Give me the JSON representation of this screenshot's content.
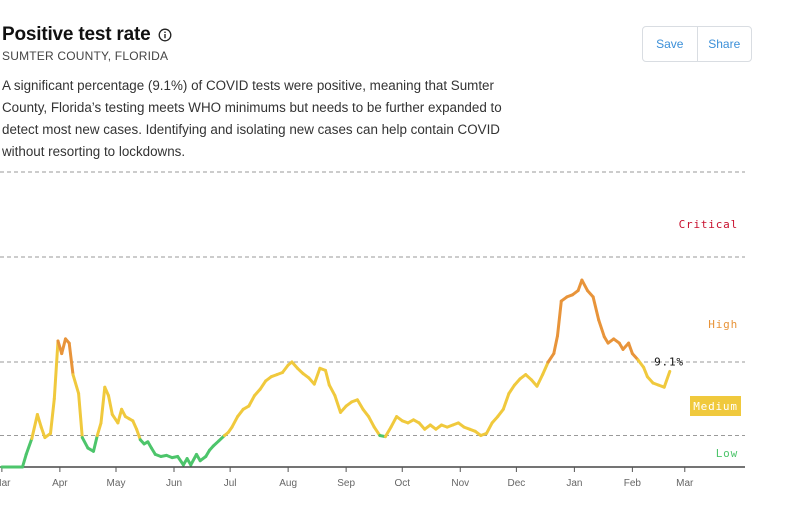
{
  "header": {
    "title": "Positive test rate",
    "subtitle": "SUMTER COUNTY, FLORIDA",
    "description": "A significant percentage (9.1%) of COVID tests were positive, meaning that Sumter County, Florida’s testing meets WHO minimums but needs to be further expanded to detect most new cases. Identifying and isolating new cases can help contain COVID without resorting to lockdowns.",
    "info_icon": "info-icon"
  },
  "actions": {
    "save_label": "Save",
    "share_label": "Share"
  },
  "chart_data": {
    "type": "line",
    "title": "",
    "xlabel": "",
    "ylabel": "",
    "x_start": "2020-03-01",
    "x_end": "2021-03-31",
    "ylim": [
      0,
      0.2
    ],
    "x_ticks": [
      {
        "date": "2020-03-01",
        "label": "Mar"
      },
      {
        "date": "2020-04-01",
        "label": "Apr"
      },
      {
        "date": "2020-05-01",
        "label": "May"
      },
      {
        "date": "2020-06-01",
        "label": "Jun"
      },
      {
        "date": "2020-07-01",
        "label": "Jul"
      },
      {
        "date": "2020-08-01",
        "label": "Aug"
      },
      {
        "date": "2020-09-01",
        "label": "Sep"
      },
      {
        "date": "2020-10-01",
        "label": "Oct"
      },
      {
        "date": "2020-11-01",
        "label": "Nov"
      },
      {
        "date": "2020-12-01",
        "label": "Dec"
      },
      {
        "date": "2021-01-01",
        "label": "Jan"
      },
      {
        "date": "2021-02-01",
        "label": "Feb"
      },
      {
        "date": "2021-03-01",
        "label": "Mar"
      }
    ],
    "thresholds": [
      0.03,
      0.1,
      0.2
    ],
    "zones": [
      {
        "name": "Low",
        "label": "Low",
        "min": 0,
        "max": 0.03,
        "color": "#4dc56b"
      },
      {
        "name": "Medium",
        "label": "Medium",
        "min": 0.03,
        "max": 0.1,
        "color": "#f0c93d"
      },
      {
        "name": "High",
        "label": "High",
        "min": 0.1,
        "max": 0.2,
        "color": "#e8943a"
      },
      {
        "name": "Critical",
        "label": "Critical",
        "min": 0.2,
        "max": 0.3,
        "color": "#c8102e"
      }
    ],
    "latest_label": "9.1%",
    "latest_value": 0.091,
    "series": [
      {
        "points": [
          [
            "2020-03-01",
            0.0
          ],
          [
            "2020-03-12",
            0.0
          ],
          [
            "2020-03-14",
            0.012
          ],
          [
            "2020-03-17",
            0.027
          ],
          [
            "2020-03-20",
            0.05
          ],
          [
            "2020-03-22",
            0.038
          ],
          [
            "2020-03-24",
            0.028
          ],
          [
            "2020-03-27",
            0.032
          ],
          [
            "2020-03-29",
            0.065
          ],
          [
            "2020-03-31",
            0.12
          ],
          [
            "2020-04-02",
            0.108
          ],
          [
            "2020-04-04",
            0.122
          ],
          [
            "2020-04-06",
            0.118
          ],
          [
            "2020-04-08",
            0.088
          ],
          [
            "2020-04-11",
            0.07
          ],
          [
            "2020-04-13",
            0.028
          ],
          [
            "2020-04-16",
            0.018
          ],
          [
            "2020-04-19",
            0.015
          ],
          [
            "2020-04-21",
            0.03
          ],
          [
            "2020-04-23",
            0.042
          ],
          [
            "2020-04-25",
            0.076
          ],
          [
            "2020-04-27",
            0.068
          ],
          [
            "2020-04-29",
            0.05
          ],
          [
            "2020-05-02",
            0.042
          ],
          [
            "2020-05-04",
            0.055
          ],
          [
            "2020-05-06",
            0.048
          ],
          [
            "2020-05-08",
            0.046
          ],
          [
            "2020-05-10",
            0.044
          ],
          [
            "2020-05-12",
            0.036
          ],
          [
            "2020-05-14",
            0.026
          ],
          [
            "2020-05-16",
            0.022
          ],
          [
            "2020-05-18",
            0.024
          ],
          [
            "2020-05-20",
            0.018
          ],
          [
            "2020-05-22",
            0.012
          ],
          [
            "2020-05-25",
            0.01
          ],
          [
            "2020-05-28",
            0.011
          ],
          [
            "2020-05-31",
            0.009
          ],
          [
            "2020-06-03",
            0.01
          ],
          [
            "2020-06-06",
            0.002
          ],
          [
            "2020-06-08",
            0.008
          ],
          [
            "2020-06-10",
            0.002
          ],
          [
            "2020-06-13",
            0.012
          ],
          [
            "2020-06-15",
            0.006
          ],
          [
            "2020-06-18",
            0.01
          ],
          [
            "2020-06-20",
            0.016
          ],
          [
            "2020-06-22",
            0.02
          ],
          [
            "2020-06-25",
            0.025
          ],
          [
            "2020-06-28",
            0.03
          ],
          [
            "2020-06-30",
            0.033
          ],
          [
            "2020-07-02",
            0.038
          ],
          [
            "2020-07-05",
            0.048
          ],
          [
            "2020-07-08",
            0.055
          ],
          [
            "2020-07-11",
            0.058
          ],
          [
            "2020-07-14",
            0.068
          ],
          [
            "2020-07-17",
            0.074
          ],
          [
            "2020-07-20",
            0.082
          ],
          [
            "2020-07-23",
            0.086
          ],
          [
            "2020-07-26",
            0.088
          ],
          [
            "2020-07-29",
            0.09
          ],
          [
            "2020-08-01",
            0.097
          ],
          [
            "2020-08-03",
            0.1
          ],
          [
            "2020-08-06",
            0.094
          ],
          [
            "2020-08-09",
            0.089
          ],
          [
            "2020-08-12",
            0.085
          ],
          [
            "2020-08-15",
            0.079
          ],
          [
            "2020-08-18",
            0.094
          ],
          [
            "2020-08-21",
            0.092
          ],
          [
            "2020-08-23",
            0.078
          ],
          [
            "2020-08-26",
            0.068
          ],
          [
            "2020-08-29",
            0.052
          ],
          [
            "2020-09-01",
            0.058
          ],
          [
            "2020-09-04",
            0.062
          ],
          [
            "2020-09-07",
            0.064
          ],
          [
            "2020-09-10",
            0.055
          ],
          [
            "2020-09-13",
            0.048
          ],
          [
            "2020-09-16",
            0.038
          ],
          [
            "2020-09-19",
            0.03
          ],
          [
            "2020-09-22",
            0.029
          ],
          [
            "2020-09-25",
            0.038
          ],
          [
            "2020-09-28",
            0.048
          ],
          [
            "2020-10-01",
            0.044
          ],
          [
            "2020-10-04",
            0.042
          ],
          [
            "2020-10-07",
            0.045
          ],
          [
            "2020-10-10",
            0.042
          ],
          [
            "2020-10-13",
            0.036
          ],
          [
            "2020-10-16",
            0.04
          ],
          [
            "2020-10-19",
            0.036
          ],
          [
            "2020-10-22",
            0.04
          ],
          [
            "2020-10-25",
            0.038
          ],
          [
            "2020-10-28",
            0.04
          ],
          [
            "2020-10-31",
            0.042
          ],
          [
            "2020-11-03",
            0.038
          ],
          [
            "2020-11-06",
            0.036
          ],
          [
            "2020-11-09",
            0.034
          ],
          [
            "2020-11-12",
            0.03
          ],
          [
            "2020-11-15",
            0.032
          ],
          [
            "2020-11-18",
            0.042
          ],
          [
            "2020-11-21",
            0.048
          ],
          [
            "2020-11-24",
            0.055
          ],
          [
            "2020-11-27",
            0.07
          ],
          [
            "2020-11-30",
            0.078
          ],
          [
            "2020-12-03",
            0.084
          ],
          [
            "2020-12-06",
            0.088
          ],
          [
            "2020-12-09",
            0.083
          ],
          [
            "2020-12-12",
            0.077
          ],
          [
            "2020-12-15",
            0.088
          ],
          [
            "2020-12-18",
            0.1
          ],
          [
            "2020-12-21",
            0.108
          ],
          [
            "2020-12-23",
            0.125
          ],
          [
            "2020-12-25",
            0.158
          ],
          [
            "2020-12-28",
            0.162
          ],
          [
            "2020-12-31",
            0.164
          ],
          [
            "2021-01-03",
            0.168
          ],
          [
            "2021-01-05",
            0.178
          ],
          [
            "2021-01-08",
            0.168
          ],
          [
            "2021-01-11",
            0.162
          ],
          [
            "2021-01-14",
            0.14
          ],
          [
            "2021-01-17",
            0.124
          ],
          [
            "2021-01-19",
            0.118
          ],
          [
            "2021-01-22",
            0.122
          ],
          [
            "2021-01-25",
            0.118
          ],
          [
            "2021-01-27",
            0.112
          ],
          [
            "2021-01-30",
            0.118
          ],
          [
            "2021-02-01",
            0.108
          ],
          [
            "2021-02-04",
            0.102
          ],
          [
            "2021-02-07",
            0.095
          ],
          [
            "2021-02-09",
            0.086
          ],
          [
            "2021-02-12",
            0.08
          ],
          [
            "2021-02-15",
            0.078
          ],
          [
            "2021-02-18",
            0.076
          ],
          [
            "2021-02-21",
            0.091
          ]
        ]
      }
    ]
  }
}
